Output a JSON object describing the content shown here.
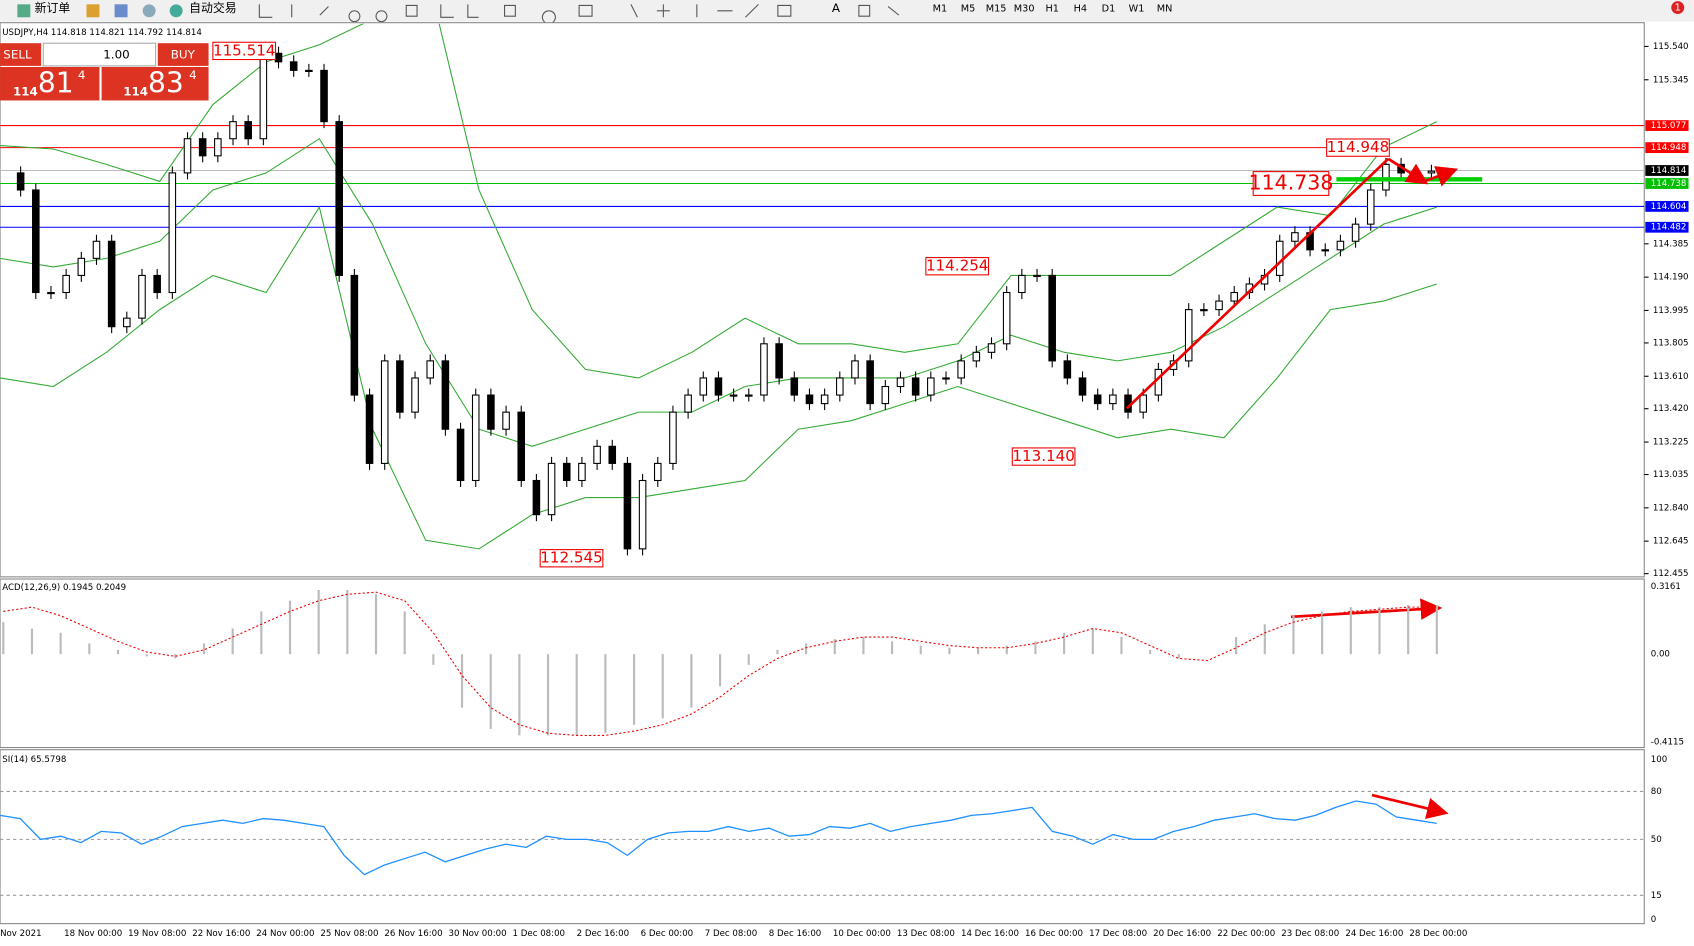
{
  "toolbar": {
    "new_order": "新订单",
    "auto_trading": "自动交易",
    "timeframes": [
      "M1",
      "M5",
      "M15",
      "M30",
      "H1",
      "H4",
      "D1",
      "W1",
      "MN"
    ],
    "text_tool": "A",
    "notifications": "1"
  },
  "chart": {
    "header": "USDJPY,H4 114.818 114.821 114.792 114.814",
    "trade_panel": {
      "sell": "SELL",
      "buy": "BUY",
      "lots": "1.00",
      "bid": {
        "big": "114",
        "pips": "81",
        "point": "4"
      },
      "ask": {
        "big": "114",
        "pips": "83",
        "point": "4"
      }
    },
    "price_axis": [
      "115.540",
      "115.345",
      "114.385",
      "114.190",
      "113.995",
      "113.805",
      "113.610",
      "113.420",
      "113.225",
      "113.035",
      "112.840",
      "112.645",
      "112.455"
    ],
    "levels": [
      {
        "label": "115.077",
        "color": "#ff0000"
      },
      {
        "label": "114.948",
        "color": "#ff0000"
      },
      {
        "label": "114.814",
        "color": "#000000"
      },
      {
        "label": "114.738",
        "color": "#00c000"
      },
      {
        "label": "114.604",
        "color": "#0000ff"
      },
      {
        "label": "114.482",
        "color": "#0000ff"
      }
    ],
    "annotations": [
      "115.514",
      "114.948",
      "114.738",
      "114.254",
      "113.140",
      "112.545"
    ],
    "closes": [
      114.8,
      114.7,
      114.1,
      114.1,
      114.2,
      114.3,
      114.4,
      113.9,
      113.95,
      114.2,
      114.1,
      114.8,
      115.0,
      114.9,
      115.0,
      115.1,
      115.0,
      115.5,
      115.45,
      115.4,
      115.4,
      115.1,
      114.2,
      113.5,
      113.1,
      113.7,
      113.4,
      113.6,
      113.7,
      113.3,
      113.0,
      113.5,
      113.3,
      113.4,
      113.0,
      112.8,
      113.1,
      113.0,
      113.1,
      113.2,
      113.1,
      112.6,
      113.0,
      113.1,
      113.4,
      113.5,
      113.6,
      113.5,
      113.5,
      113.5,
      113.8,
      113.6,
      113.5,
      113.45,
      113.5,
      113.6,
      113.7,
      113.45,
      113.55,
      113.6,
      113.5,
      113.6,
      113.6,
      113.7,
      113.75,
      113.8,
      114.1,
      114.2,
      114.2,
      113.7,
      113.6,
      113.5,
      113.45,
      113.5,
      113.4,
      113.5,
      113.65,
      113.7,
      114.0,
      114.0,
      114.05,
      114.1,
      114.15,
      114.2,
      114.4,
      114.45,
      114.35,
      114.35,
      114.4,
      114.5,
      114.7,
      114.85,
      114.8,
      114.8,
      114.81
    ],
    "bands": {
      "upper": [
        114.96,
        114.94,
        114.85,
        114.75,
        115.2,
        115.45,
        115.55,
        115.7,
        116.0,
        114.7,
        114.0,
        113.65,
        113.6,
        113.75,
        113.95,
        113.8,
        113.8,
        113.75,
        113.8,
        114.2,
        114.2,
        114.2,
        114.2,
        114.4,
        114.6,
        114.55,
        114.95,
        115.1
      ],
      "middle": [
        114.3,
        114.25,
        114.3,
        114.4,
        114.7,
        114.8,
        115.0,
        114.5,
        113.8,
        113.3,
        113.2,
        113.3,
        113.4,
        113.4,
        113.55,
        113.6,
        113.6,
        113.6,
        113.7,
        113.85,
        113.75,
        113.7,
        113.75,
        113.9,
        114.1,
        114.3,
        114.5,
        114.6
      ],
      "lower": [
        113.6,
        113.55,
        113.75,
        114.0,
        114.2,
        114.1,
        114.6,
        113.3,
        112.65,
        112.6,
        112.8,
        112.9,
        112.9,
        112.95,
        113.0,
        113.3,
        113.35,
        113.45,
        113.55,
        113.45,
        113.35,
        113.25,
        113.3,
        113.25,
        113.6,
        114.0,
        114.05,
        114.15
      ]
    },
    "dates": [
      "Nov 2021",
      "18 Nov 00:00",
      "19 Nov 08:00",
      "22 Nov 16:00",
      "24 Nov 00:00",
      "25 Nov 08:00",
      "26 Nov 16:00",
      "30 Nov 00:00",
      "1 Dec 08:00",
      "2 Dec 16:00",
      "6 Dec 00:00",
      "7 Dec 08:00",
      "8 Dec 16:00",
      "10 Dec 00:00",
      "13 Dec 08:00",
      "14 Dec 16:00",
      "16 Dec 00:00",
      "17 Dec 08:00",
      "20 Dec 16:00",
      "22 Dec 00:00",
      "23 Dec 08:00",
      "24 Dec 16:00",
      "28 Dec 00:00"
    ]
  },
  "macd": {
    "label": "ACD(12,26,9) 0.1945 0.2049",
    "axis": [
      "0.3161",
      "0.00",
      "-0.4115"
    ],
    "histogram": [
      0.15,
      0.12,
      0.1,
      0.05,
      0.02,
      -0.01,
      -0.02,
      0.05,
      0.12,
      0.2,
      0.25,
      0.3,
      0.3,
      0.28,
      0.2,
      -0.05,
      -0.25,
      -0.35,
      -0.38,
      -0.38,
      -0.38,
      -0.37,
      -0.33,
      -0.3,
      -0.25,
      -0.15,
      -0.05,
      0.02,
      0.05,
      0.07,
      0.08,
      0.06,
      0.04,
      0.03,
      0.03,
      0.04,
      0.06,
      0.1,
      0.12,
      0.08,
      0.02,
      -0.02,
      0.0,
      0.08,
      0.14,
      0.18,
      0.2,
      0.22,
      0.22,
      0.23,
      0.23
    ],
    "signal": [
      0.2,
      0.22,
      0.18,
      0.12,
      0.06,
      0.01,
      -0.01,
      0.02,
      0.08,
      0.14,
      0.2,
      0.25,
      0.28,
      0.29,
      0.25,
      0.1,
      -0.1,
      -0.25,
      -0.33,
      -0.37,
      -0.38,
      -0.38,
      -0.36,
      -0.33,
      -0.28,
      -0.2,
      -0.1,
      -0.02,
      0.03,
      0.06,
      0.08,
      0.08,
      0.06,
      0.04,
      0.03,
      0.03,
      0.05,
      0.08,
      0.12,
      0.1,
      0.04,
      -0.02,
      -0.03,
      0.03,
      0.1,
      0.15,
      0.18,
      0.2,
      0.21,
      0.22,
      0.22
    ]
  },
  "rsi": {
    "label": "SI(14) 65.5798",
    "axis": [
      100,
      80,
      50,
      15,
      0
    ],
    "values": [
      65,
      63,
      50,
      52,
      48,
      55,
      54,
      47,
      52,
      58,
      60,
      62,
      60,
      63,
      62,
      60,
      58,
      40,
      28,
      34,
      38,
      42,
      36,
      40,
      44,
      47,
      45,
      52,
      50,
      50,
      48,
      40,
      50,
      54,
      55,
      55,
      58,
      55,
      57,
      52,
      53,
      58,
      57,
      60,
      55,
      58,
      60,
      62,
      65,
      66,
      68,
      70,
      55,
      52,
      47,
      53,
      50,
      50,
      55,
      58,
      62,
      64,
      66,
      63,
      62,
      65,
      70,
      74,
      72,
      64,
      62,
      60
    ]
  }
}
